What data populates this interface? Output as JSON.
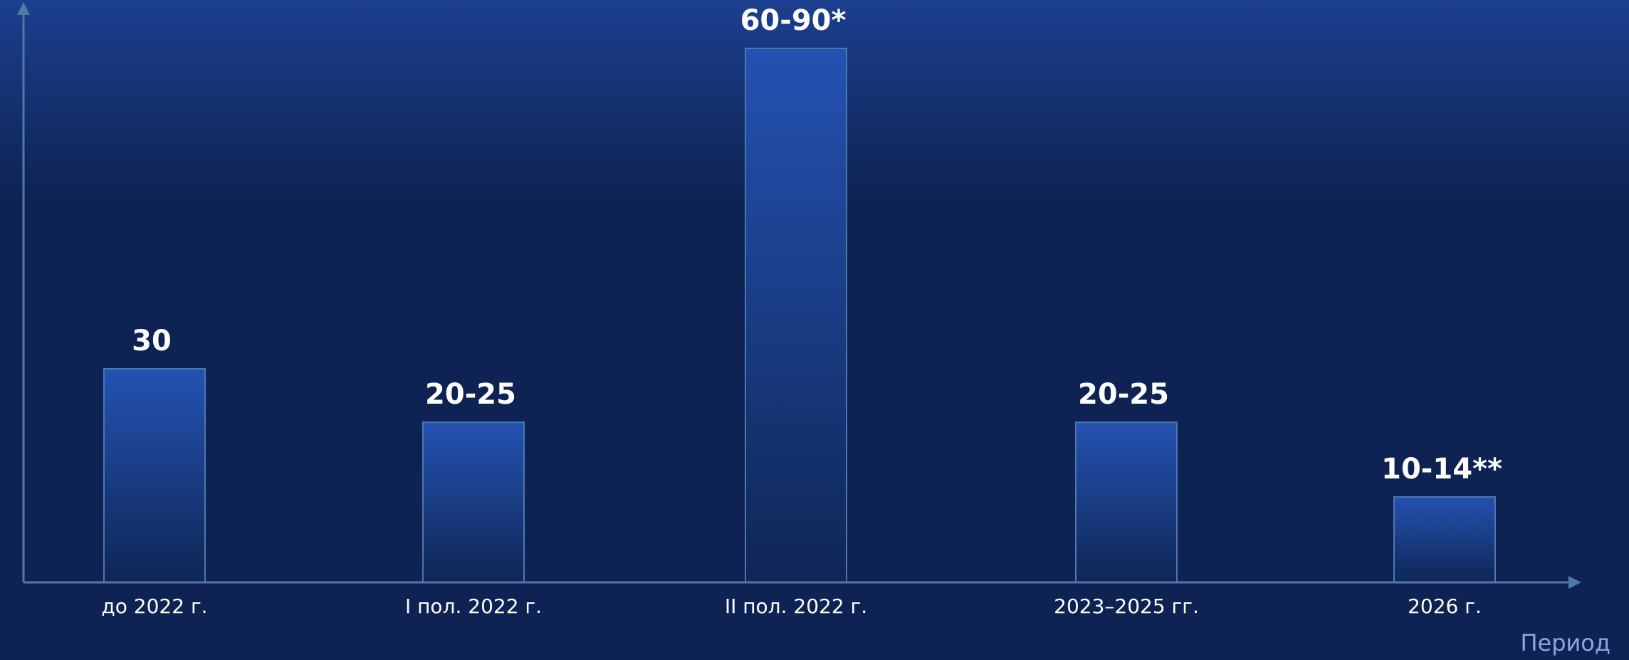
{
  "chart_data": {
    "type": "bar",
    "categories": [
      "до 2022 г.",
      "I пол. 2022 г.",
      "II пол. 2022 г.",
      "2023–2025 гг.",
      "2026 г."
    ],
    "values": [
      30,
      22.5,
      75,
      22.5,
      12
    ],
    "value_labels": [
      "30",
      "20-25",
      "60-90*",
      "20-25",
      "10-14**"
    ],
    "xlabel": "Период",
    "ylabel": "",
    "ylim": [
      0,
      80
    ],
    "grid": false,
    "legend": "none",
    "colors": {
      "background_top": "#1c3f8f",
      "background": "#0e2353",
      "bar_top": "#2452b2",
      "bar_bottom": "#0f2656",
      "bar_border": "#4b78ad",
      "axis": "#4e7aa8"
    }
  }
}
